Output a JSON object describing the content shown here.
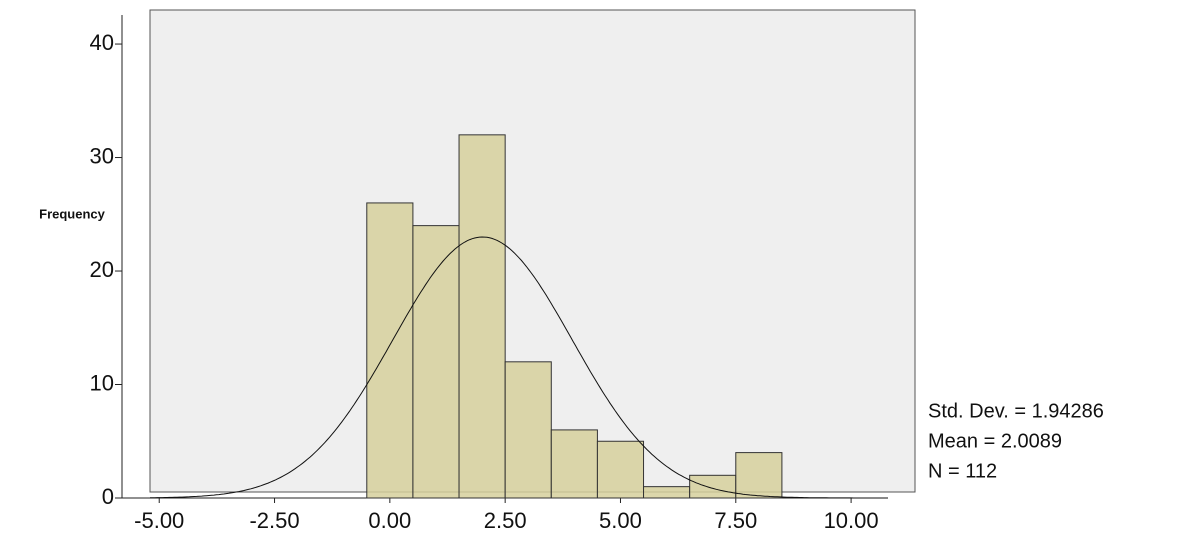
{
  "chart_data": {
    "type": "histogram",
    "y_label": "Frequency",
    "bins": [
      -0.5,
      0.5,
      1.5,
      2.5,
      3.5,
      4.5,
      5.5,
      6.5,
      7.5,
      8.5
    ],
    "values": [
      26,
      24,
      32,
      12,
      6,
      5,
      1,
      2,
      4
    ],
    "color": "#d6d09c",
    "xlim": [
      -5.2,
      10.8
    ],
    "ylim": [
      0,
      43
    ],
    "xticks": [
      {
        "value": -5,
        "label": "-5.00"
      },
      {
        "value": -2.5,
        "label": "-2.50"
      },
      {
        "value": 0,
        "label": "0.00"
      },
      {
        "value": 2.5,
        "label": "2.50"
      },
      {
        "value": 5,
        "label": "5.00"
      },
      {
        "value": 7.5,
        "label": "7.50"
      },
      {
        "value": 10,
        "label": "10.00"
      }
    ],
    "yticks": [
      0,
      10,
      20,
      30,
      40
    ],
    "normal_curve": {
      "mean": 2.0089,
      "sd": 1.94286,
      "n": 112
    },
    "annotations": [
      "Std. Dev. = 1.94286",
      "Mean = 2.0089",
      "N = 112"
    ]
  }
}
